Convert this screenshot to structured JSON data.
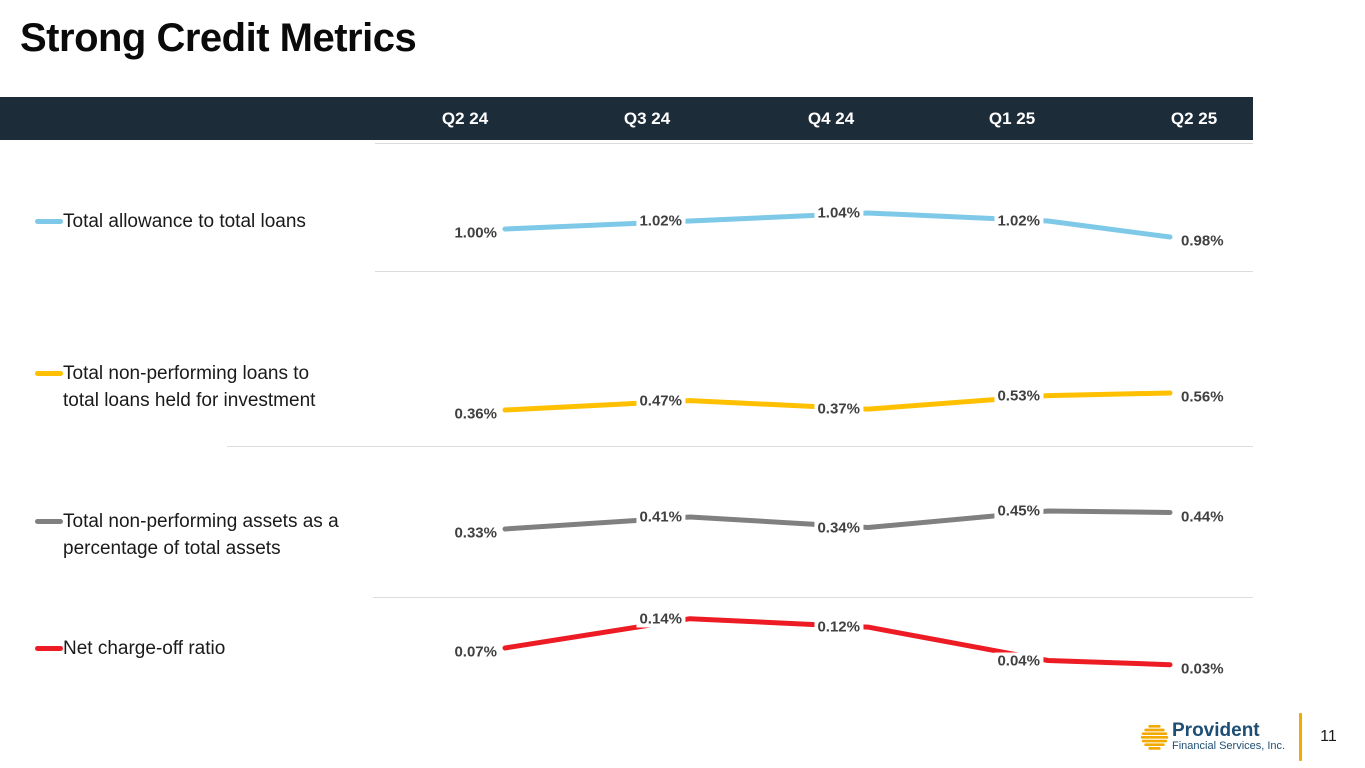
{
  "slide": {
    "title": "Strong Credit Metrics"
  },
  "table_header": {
    "columns": [
      "Q2 24",
      "Q3 24",
      "Q4 24",
      "Q1 25",
      "Q2 25"
    ]
  },
  "chart_data": {
    "type": "line",
    "categories": [
      "Q2 24",
      "Q3 24",
      "Q4 24",
      "Q1 25",
      "Q2 25"
    ],
    "grid": false,
    "legend_position": "left",
    "value_format": "percent",
    "series": [
      {
        "name": "Total allowance to total loans",
        "legend_lines": [
          "Total allowance to total loans"
        ],
        "color": "#7EC8E8",
        "values": [
          1.0,
          1.02,
          1.04,
          1.02,
          0.98
        ],
        "value_labels": [
          "1.00%",
          "1.02%",
          "1.04%",
          "1.02%",
          "0.98%"
        ]
      },
      {
        "name": "Total non-performing loans to total loans held for investment",
        "legend_lines": [
          "Total non-performing loans to",
          "total loans held for investment"
        ],
        "color": "#FFC000",
        "values": [
          0.36,
          0.47,
          0.37,
          0.53,
          0.56
        ],
        "value_labels": [
          "0.36%",
          "0.47%",
          "0.37%",
          "0.53%",
          "0.56%"
        ]
      },
      {
        "name": "Total non-performing assets as a percentage of total assets",
        "legend_lines": [
          "Total non-performing assets as a",
          "percentage of total assets"
        ],
        "color": "#808080",
        "values": [
          0.33,
          0.41,
          0.34,
          0.45,
          0.44
        ],
        "value_labels": [
          "0.33%",
          "0.41%",
          "0.34%",
          "0.45%",
          "0.44%"
        ]
      },
      {
        "name": "Net charge-off ratio",
        "legend_lines": [
          "Net charge-off ratio"
        ],
        "color": "#ED1C24",
        "values": [
          0.07,
          0.14,
          0.12,
          0.04,
          0.03
        ],
        "value_labels": [
          "0.07%",
          "0.14%",
          "0.12%",
          "0.04%",
          "0.03%"
        ]
      }
    ]
  },
  "footer": {
    "logo_name": "Provident",
    "logo_subtitle": "Financial Services, Inc.",
    "page_number": "11"
  },
  "colors": {
    "header_bg": "#1D2C39",
    "separator": "#DCDCDC",
    "value_label": "#404040",
    "accent_gold": "#F2A900",
    "logo_navy": "#1E4E74"
  }
}
